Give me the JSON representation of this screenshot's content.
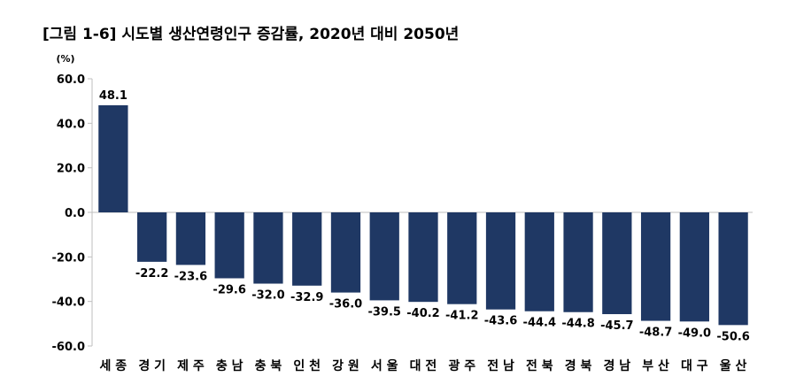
{
  "chart_data": {
    "type": "bar",
    "title": "[그림 1-6] 시도별 생산연령인구 증감률, 2020년 대비 2050년",
    "unit": "(%)",
    "xlabel": "",
    "ylabel": "",
    "ylim": [
      -60,
      60
    ],
    "yticks": [
      "60.0",
      "40.0",
      "20.0",
      "0.0",
      "-20.0",
      "-40.0",
      "-60.0"
    ],
    "grid": false,
    "bar_color": "#1F3864",
    "categories": [
      "세종",
      "경기",
      "제주",
      "충남",
      "충북",
      "인천",
      "강원",
      "서울",
      "대전",
      "광주",
      "전남",
      "전북",
      "경북",
      "경남",
      "부산",
      "대구",
      "울산"
    ],
    "values": [
      48.1,
      -22.2,
      -23.6,
      -29.6,
      -32.0,
      -32.9,
      -36.0,
      -39.5,
      -40.2,
      -41.2,
      -43.6,
      -44.4,
      -44.8,
      -45.7,
      -48.7,
      -49.0,
      -50.6
    ],
    "value_labels": [
      "48.1",
      "-22.2",
      "-23.6",
      "-29.6",
      "-32.0",
      "-32.9",
      "-36.0",
      "-39.5",
      "-40.2",
      "-41.2",
      "-43.6",
      "-44.4",
      "-44.8",
      "-45.7",
      "-48.7",
      "-49.0",
      "-50.6"
    ],
    "category_labels": [
      "세 종",
      "경 기",
      "제 주",
      "충 남",
      "충 북",
      "인 천",
      "강 원",
      "서 울",
      "대 전",
      "광 주",
      "전 남",
      "전 북",
      "경 북",
      "경 남",
      "부 산",
      "대 구",
      "울 산"
    ]
  }
}
